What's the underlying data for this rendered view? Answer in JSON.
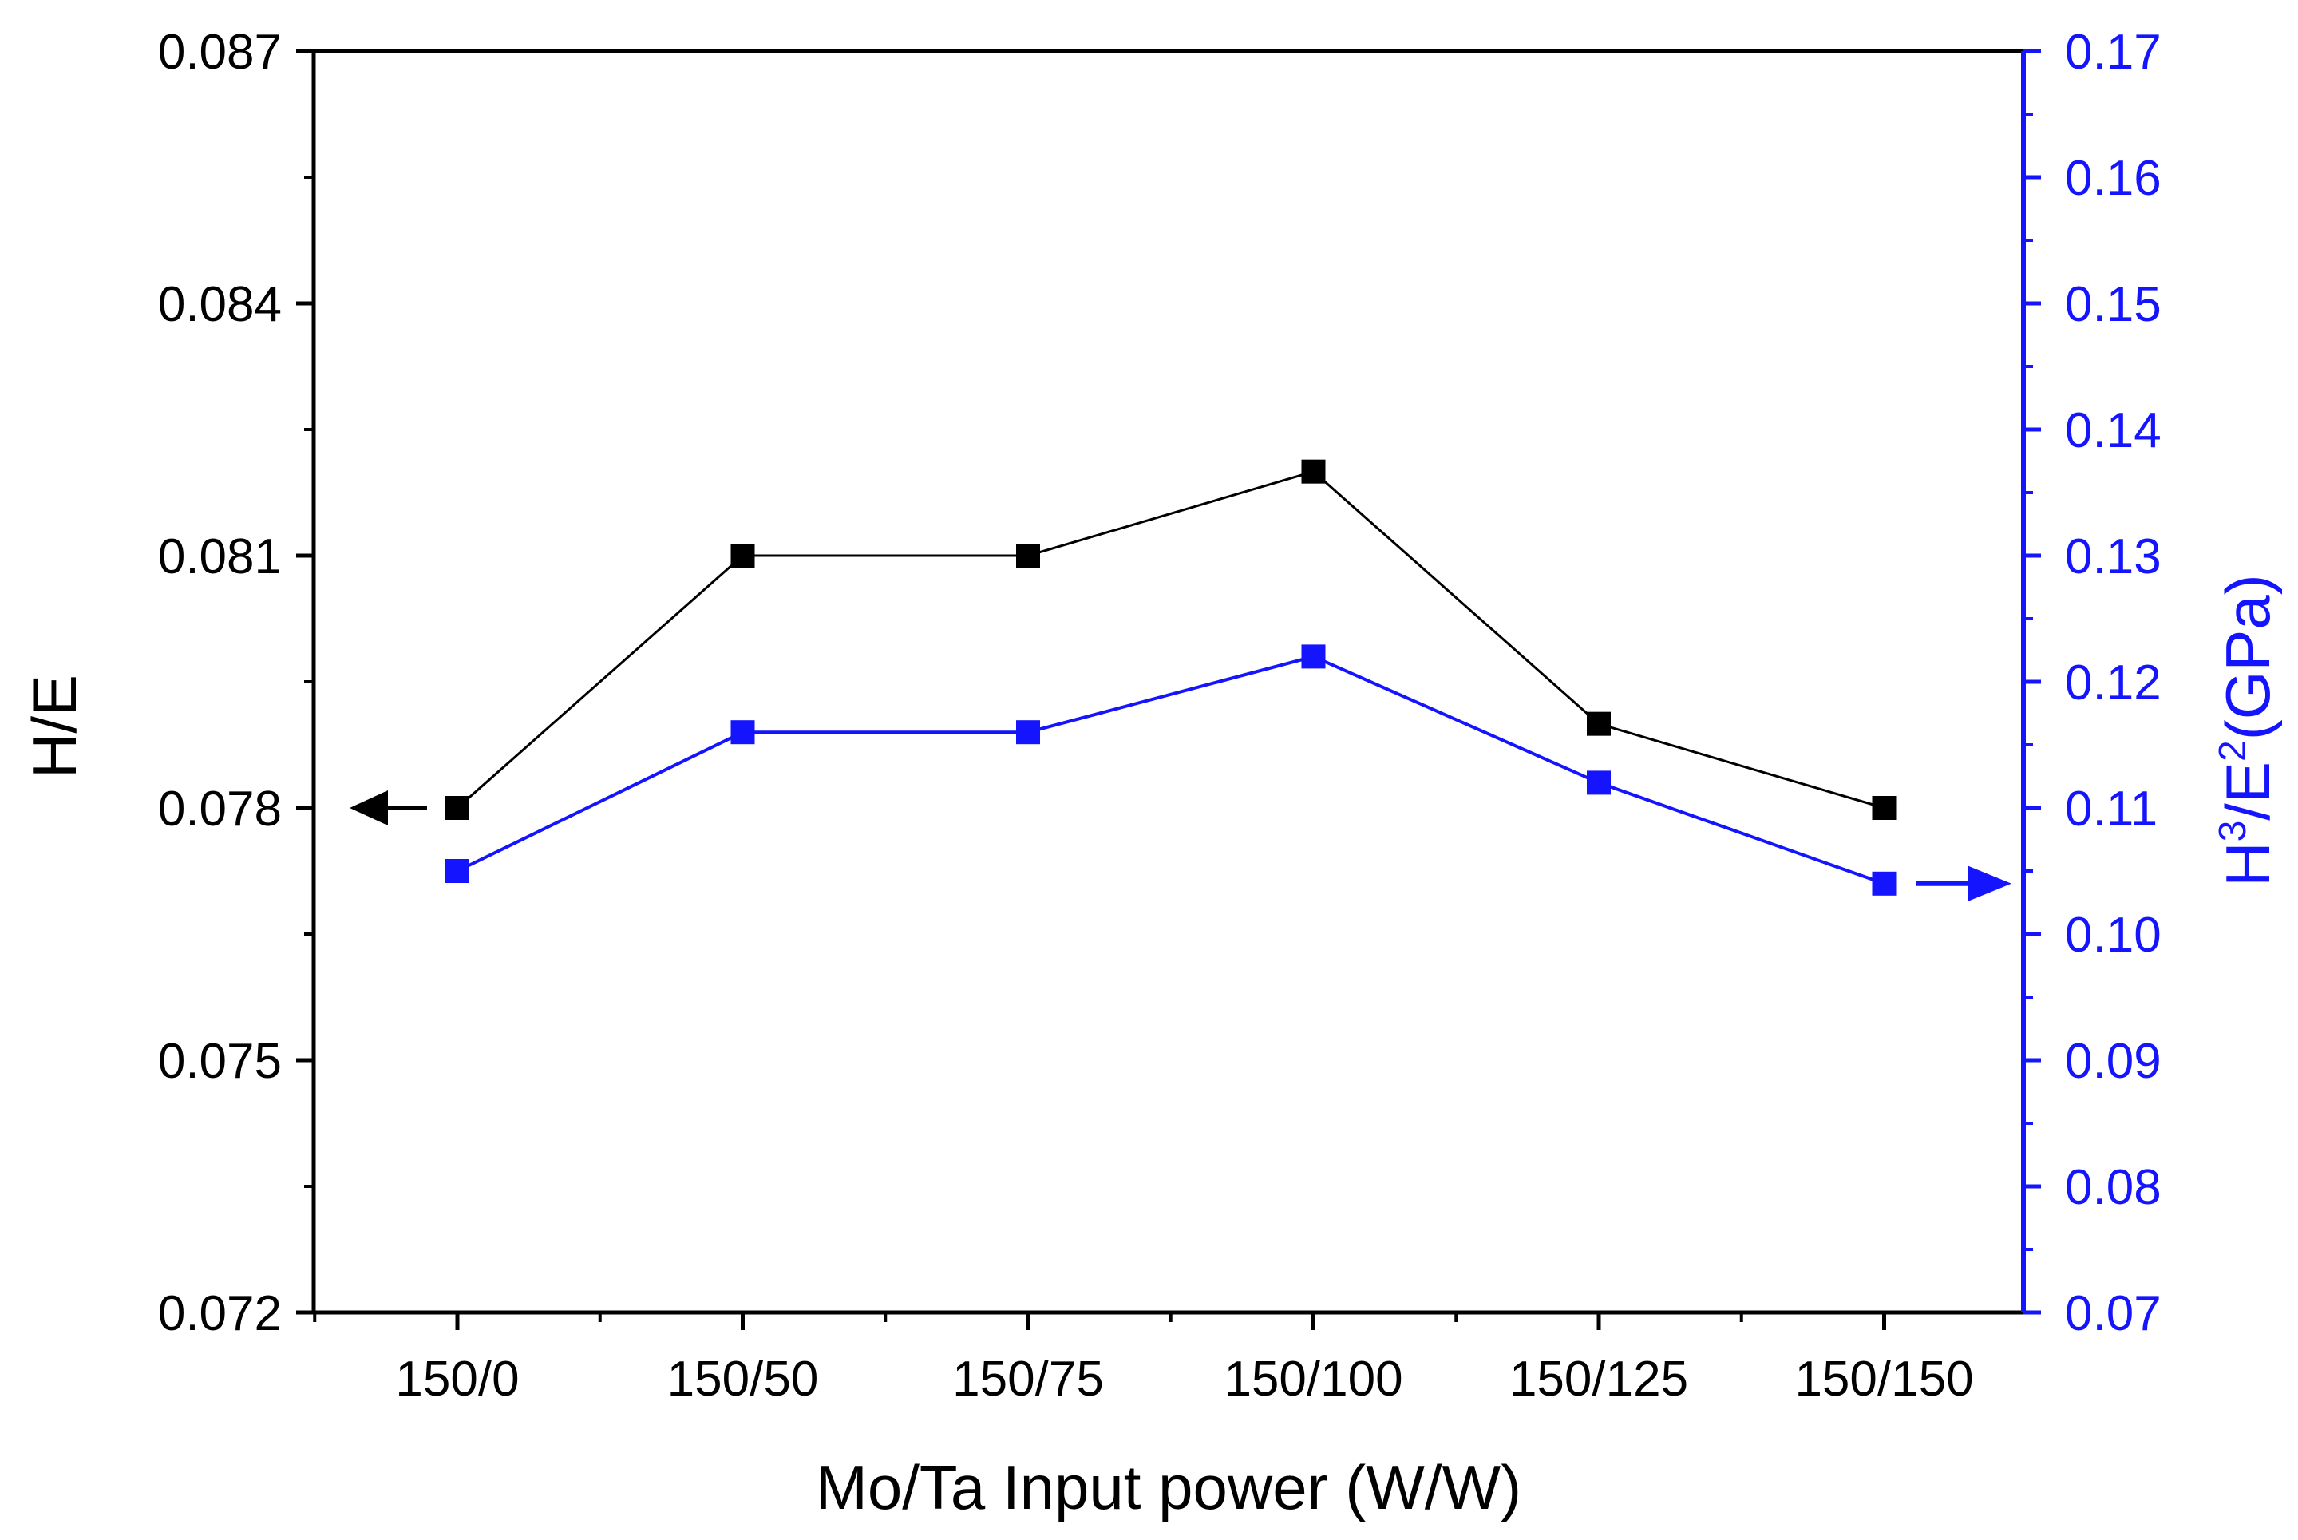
{
  "chart_data": {
    "type": "line",
    "xlabel": "Mo/Ta Input power (W/W)",
    "categories": [
      "150/0",
      "150/50",
      "150/75",
      "150/100",
      "150/125",
      "150/150"
    ],
    "y_left": {
      "label": "H/E",
      "range": [
        0.072,
        0.087
      ],
      "ticks": [
        "0.072",
        "0.075",
        "0.078",
        "0.081",
        "0.084",
        "0.087"
      ],
      "color": "#000000"
    },
    "y_right": {
      "label_main": "H",
      "label_sup1": "3",
      "label_mid": "/E",
      "label_sup2": "2",
      "label_end": "(GPa)",
      "range": [
        0.07,
        0.17
      ],
      "ticks": [
        "0.07",
        "0.08",
        "0.09",
        "0.10",
        "0.11",
        "0.12",
        "0.13",
        "0.14",
        "0.15",
        "0.16",
        "0.17"
      ],
      "color": "#1414ff"
    },
    "series": [
      {
        "name": "H/E",
        "axis": "left",
        "color": "#000000",
        "values": [
          0.078,
          0.081,
          0.081,
          0.082,
          0.079,
          0.078
        ]
      },
      {
        "name": "H3/E2 (GPa)",
        "axis": "right",
        "color": "#1414ff",
        "values": [
          0.105,
          0.116,
          0.116,
          0.122,
          0.112,
          0.104
        ]
      }
    ],
    "annotations": [
      {
        "type": "arrow",
        "direction": "left",
        "series": "H/E",
        "color": "#000000"
      },
      {
        "type": "arrow",
        "direction": "right",
        "series": "H3/E2 (GPa)",
        "color": "#1414ff"
      }
    ]
  }
}
